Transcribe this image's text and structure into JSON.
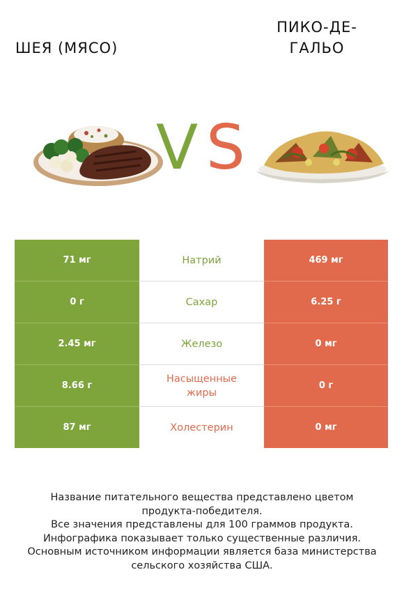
{
  "header": {
    "left_title": "ШЕЯ (МЯСО)",
    "right_title": "ПИКО-ДЕ-ГАЛЬО",
    "vs_v": "V",
    "vs_s": "S"
  },
  "colors": {
    "left_accent": "#7ea53b",
    "right_accent": "#e06a4b"
  },
  "rows": [
    {
      "left": "71 мг",
      "label": "Натрий",
      "right": "469 мг",
      "winner": "left"
    },
    {
      "left": "0 г",
      "label": "Сахар",
      "right": "6.25 г",
      "winner": "left"
    },
    {
      "left": "2.45 мг",
      "label": "Железо",
      "right": "0 мг",
      "winner": "left"
    },
    {
      "left": "8.66 г",
      "label": "Насыщенные жиры",
      "right": "0 г",
      "winner": "right"
    },
    {
      "left": "87 мг",
      "label": "Холестерин",
      "right": "0 мг",
      "winner": "right"
    }
  ],
  "notes": {
    "line1": "Название питательного вещества представлено цветом",
    "line2": "продукта-победителя.",
    "line3": "Все значения представлены для 100 граммов продукта.",
    "line4": "Инфографика показывает только существенные различия.",
    "line5": "Основным источником информации является база министерства",
    "line6": "сельского хозяйства США."
  }
}
